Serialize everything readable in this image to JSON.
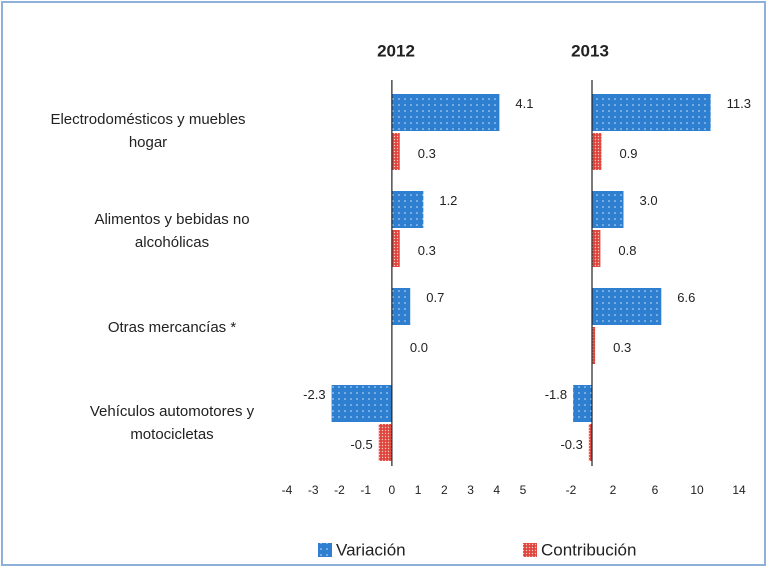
{
  "chart_data": [
    {
      "type": "bar",
      "orientation": "horizontal",
      "title": "2012",
      "categories": [
        [
          "Electrodomésticos y muebles",
          "hogar"
        ],
        [
          "Alimentos y bebidas no",
          "alcohólicas"
        ],
        [
          "Otras mercancías  *"
        ],
        [
          "Vehículos automotores y",
          "motocicletas"
        ]
      ],
      "series": [
        {
          "name": "Variación",
          "color": "#2f7fd0",
          "values": [
            4.1,
            1.2,
            0.7,
            -2.3
          ],
          "value_labels": [
            "4.1",
            "1.2",
            "0.7",
            "-2.3"
          ]
        },
        {
          "name": "Contribución",
          "color": "#e0443c",
          "values": [
            0.3,
            0.3,
            0.0,
            -0.5
          ],
          "value_labels": [
            "0.3",
            "0.3",
            "0.0",
            "-0.5"
          ]
        }
      ],
      "xlim": [
        -4,
        5
      ],
      "xticks": [
        -4,
        -3,
        -2,
        -1,
        0,
        1,
        2,
        3,
        4,
        5
      ]
    },
    {
      "type": "bar",
      "orientation": "horizontal",
      "title": "2013",
      "series": [
        {
          "color": "#2f7fd0",
          "values": [
            11.3,
            3.0,
            6.6,
            -1.8
          ],
          "value_labels": [
            "11.3",
            "3.0",
            "6.6",
            "-1.8"
          ]
        },
        {
          "color": "#e0443c",
          "values": [
            0.9,
            0.8,
            0.3,
            -0.3
          ],
          "value_labels": [
            "0.9",
            "0.8",
            "0.3",
            "-0.3"
          ]
        }
      ],
      "xlim": [
        -2,
        14
      ],
      "xticks": [
        -2,
        2,
        6,
        10,
        14
      ]
    }
  ]
}
